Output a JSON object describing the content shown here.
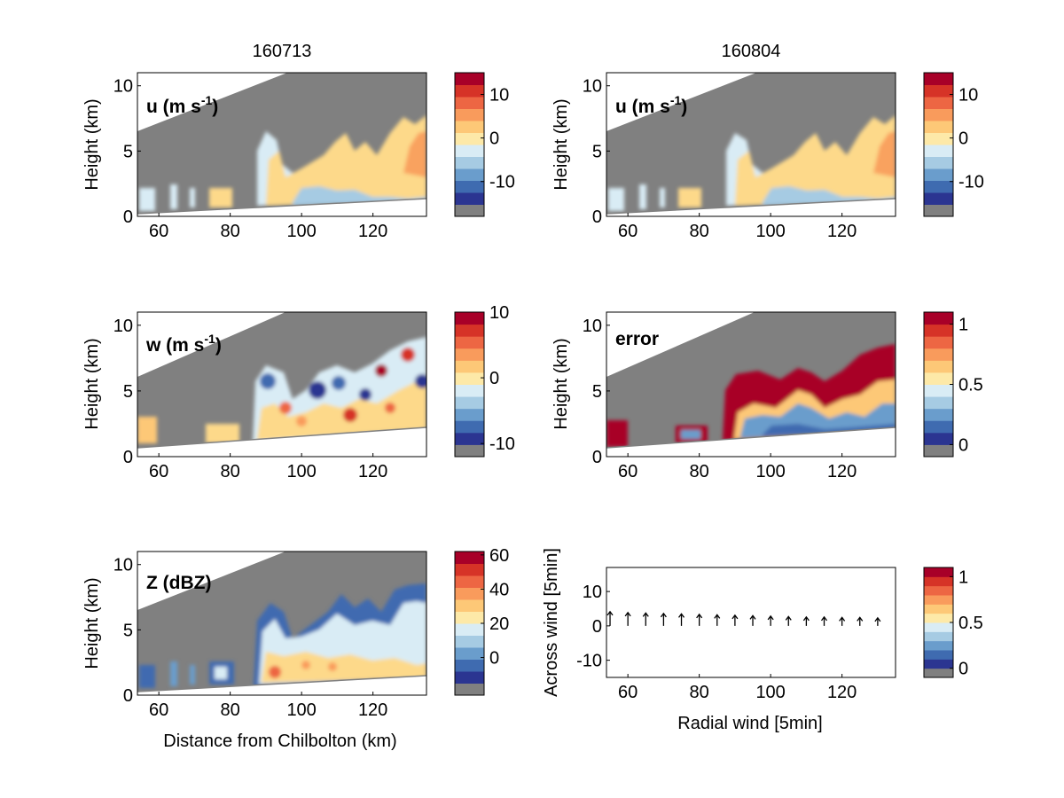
{
  "columns": [
    "160713",
    "160804"
  ],
  "xlabel": "Distance from Chilbolton (km)",
  "ylabel": "Height (km)",
  "x_ticks": [
    "60",
    "80",
    "100",
    "120"
  ],
  "y_ticks": [
    "0",
    "5",
    "10"
  ],
  "colormap": [
    "#808080",
    "#2b3591",
    "#3f6bb0",
    "#6a9dcc",
    "#a6cbe3",
    "#d9ecf5",
    "#fde9a8",
    "#fdc877",
    "#f99b5c",
    "#ed6643",
    "#d63327",
    "#a80028"
  ],
  "mask_color": "#808080",
  "chart_data": [
    {
      "type": "heatmap",
      "panel": "u-160713",
      "column": "160713",
      "annotation_main": "u (m s",
      "annotation_sup": "-1",
      "annotation_end": ")",
      "xlim": [
        54,
        135
      ],
      "ylim": [
        0,
        11
      ],
      "ylabel": "Height (km)",
      "colorbar_ticks": [
        "10",
        "0",
        "-10"
      ],
      "colorbar_range": [
        -18,
        15
      ],
      "sample_regions": [
        {
          "x": [
            55,
            63
          ],
          "y": [
            0.3,
            1.8
          ],
          "level": -3
        },
        {
          "x": [
            89,
            135
          ],
          "y": [
            1.5,
            6.5
          ],
          "level": 3
        }
      ]
    },
    {
      "type": "heatmap",
      "panel": "u-160804",
      "column": "160804",
      "annotation_main": "u (m s",
      "annotation_sup": "-1",
      "annotation_end": ")",
      "xlim": [
        54,
        135
      ],
      "ylim": [
        0,
        11
      ],
      "ylabel": "Height (km)",
      "colorbar_ticks": [
        "10",
        "0",
        "-10"
      ],
      "colorbar_range": [
        -18,
        15
      ],
      "sample_regions": [
        {
          "x": [
            55,
            63
          ],
          "y": [
            0.3,
            1.8
          ],
          "level": -3
        },
        {
          "x": [
            89,
            135
          ],
          "y": [
            1.5,
            6.5
          ],
          "level": 3
        }
      ]
    },
    {
      "type": "heatmap",
      "panel": "w-160713",
      "column": "160713",
      "annotation_main": "w (m s",
      "annotation_sup": "-1",
      "annotation_end": ")",
      "xlim": [
        54,
        135
      ],
      "ylim": [
        0,
        11
      ],
      "ylabel": "Height (km)",
      "colorbar_ticks": [
        "10",
        "0",
        "-10"
      ],
      "colorbar_range": [
        -12,
        10
      ],
      "sample_regions": [
        {
          "x": [
            87,
            135
          ],
          "y": [
            1.5,
            7.5
          ],
          "level": 0
        }
      ]
    },
    {
      "type": "heatmap",
      "panel": "error-160804",
      "column": "160804",
      "annotation_main": "error",
      "annotation_sup": "",
      "annotation_end": "",
      "xlim": [
        54,
        135
      ],
      "ylim": [
        0,
        11
      ],
      "ylabel": "Height (km)",
      "colorbar_ticks": [
        "1",
        "0.5",
        "0"
      ],
      "colorbar_range": [
        -0.1,
        1.1
      ],
      "sample_regions": [
        {
          "x": [
            87,
            135
          ],
          "y": [
            1.5,
            7.5
          ],
          "level": 1.0
        },
        {
          "x": [
            90,
            132
          ],
          "y": [
            1.5,
            4.5
          ],
          "level": 0.2
        }
      ]
    },
    {
      "type": "heatmap",
      "panel": "Z-160713",
      "column": "160713",
      "annotation_main": "Z (dBZ)",
      "annotation_sup": "",
      "annotation_end": "",
      "xlim": [
        54,
        135
      ],
      "ylim": [
        0,
        11
      ],
      "ylabel": "Height (km)",
      "xlabel": "Distance from Chilbolton (km)",
      "colorbar_ticks": [
        "60",
        "40",
        "20",
        "0"
      ],
      "colorbar_range": [
        -22,
        62
      ],
      "sample_regions": [
        {
          "x": [
            88,
            135
          ],
          "y": [
            1.0,
            7.0
          ],
          "level": 20
        },
        {
          "x": [
            90,
            130
          ],
          "y": [
            1.0,
            2.5
          ],
          "level": 35
        }
      ]
    },
    {
      "type": "scatter",
      "panel": "wind-vectors",
      "column": "160804",
      "xlabel": "Radial wind [5min]",
      "ylabel": "Across wind [5min]",
      "xlim": [
        54,
        135
      ],
      "ylim": [
        -15,
        17
      ],
      "y_ticks": [
        "10",
        "0",
        "-10"
      ],
      "colorbar_ticks": [
        "1",
        "0.5",
        "0"
      ],
      "colorbar_range": [
        -0.1,
        1.1
      ],
      "x": [
        55,
        60,
        65,
        70,
        75,
        80,
        85,
        90,
        95,
        100,
        105,
        110,
        115,
        120,
        125,
        130
      ],
      "u": [
        0,
        0,
        0,
        0,
        0,
        0,
        0,
        0,
        0,
        0,
        0,
        0,
        0,
        0,
        0,
        0
      ],
      "v": [
        3.2,
        3.0,
        2.9,
        2.8,
        2.7,
        2.6,
        2.5,
        2.4,
        2.3,
        2.2,
        2.1,
        2.0,
        2.0,
        1.9,
        1.9,
        1.8
      ]
    }
  ]
}
